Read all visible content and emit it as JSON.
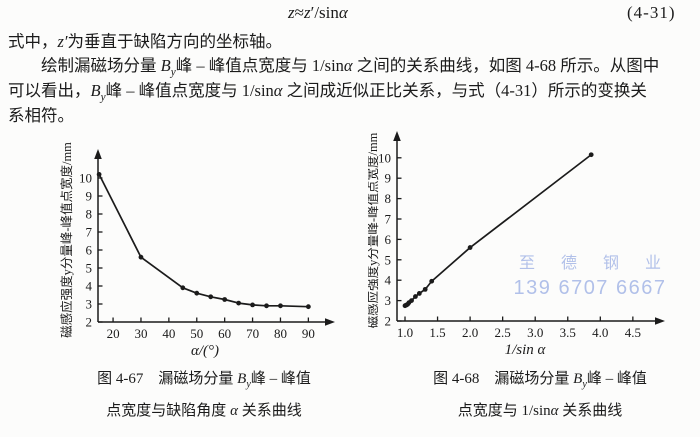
{
  "page": {
    "background": "#fcfcfb",
    "ink_color": "#1b1b1b"
  },
  "equation": {
    "formula_segments": [
      {
        "t": "z",
        "i": true
      },
      {
        "t": "≈"
      },
      {
        "t": "z",
        "i": true
      },
      {
        "t": "′"
      },
      {
        "t": "/sin"
      },
      {
        "t": "α",
        "i": true
      }
    ],
    "number": "(4-31)"
  },
  "paragraph": {
    "lines": [
      {
        "segments": [
          {
            "t": "式中，"
          },
          {
            "t": "z′",
            "i": true
          },
          {
            "t": "为垂直于缺陷方向的坐标轴。"
          }
        ]
      },
      {
        "segments": [
          {
            "t": "绘制漏磁场分量 "
          },
          {
            "t": "B",
            "i": true
          },
          {
            "t": "y",
            "i": true,
            "sub": true
          },
          {
            "t": "峰 – 峰值点宽度与 1/sin"
          },
          {
            "t": "α",
            "i": true
          },
          {
            "t": " 之间的关系曲线，如图 4-68 所示。从图中"
          }
        ]
      },
      {
        "segments": [
          {
            "t": "可以看出，"
          },
          {
            "t": "B",
            "i": true
          },
          {
            "t": "y",
            "i": true,
            "sub": true
          },
          {
            "t": "峰 – 峰值点宽度与 1/sin"
          },
          {
            "t": "α",
            "i": true
          },
          {
            "t": " 之间成近似正比关系，与式（4-31）所示的变换关"
          }
        ]
      },
      {
        "segments": [
          {
            "t": "系相符。"
          }
        ]
      }
    ]
  },
  "figures": [
    {
      "number": "图 4-67",
      "caption_line1_segments": [
        {
          "t": "图 4-67　漏磁场分量 "
        },
        {
          "t": "B",
          "i": true
        },
        {
          "t": "y",
          "i": true,
          "sub": true
        },
        {
          "t": "峰 – 峰值"
        }
      ],
      "caption_line2_segments": [
        {
          "t": "点宽度与缺陷角度 "
        },
        {
          "t": "α",
          "i": true
        },
        {
          "t": " 关系曲线"
        }
      ]
    },
    {
      "number": "图 4-68",
      "caption_line1_segments": [
        {
          "t": "图 4-68　漏磁场分量 "
        },
        {
          "t": "B",
          "i": true
        },
        {
          "t": "y",
          "i": true,
          "sub": true
        },
        {
          "t": "峰 – 峰值"
        }
      ],
      "caption_line2_segments": [
        {
          "t": "点宽度与 1/sin"
        },
        {
          "t": "α",
          "i": true
        },
        {
          "t": " 关系曲线"
        }
      ]
    }
  ],
  "watermark": {
    "line1": "至 德 钢 业",
    "line2": "139 6707 6667",
    "color": "#a4b6e6"
  },
  "chart_data": [
    {
      "figure": "图4-67",
      "type": "line",
      "title": "漏磁场分量By峰-峰值点宽度与缺陷角度α关系曲线",
      "x": [
        15,
        30,
        45,
        50,
        55,
        60,
        65,
        70,
        75,
        80,
        90
      ],
      "y": [
        10.2,
        5.6,
        3.9,
        3.6,
        3.4,
        3.25,
        3.05,
        2.95,
        2.9,
        2.9,
        2.85
      ],
      "xlabel": "α/(°)",
      "ylabel": "磁感应强度y分量峰-峰值点宽度/mm",
      "x_ticks": [
        20,
        30,
        40,
        50,
        60,
        70,
        80,
        90
      ],
      "x_tick_labels": [
        "20",
        "30",
        "40",
        "50",
        "60",
        "70",
        "80",
        "90"
      ],
      "y_ticks": [
        2,
        3,
        4,
        5,
        6,
        7,
        8,
        9,
        10
      ],
      "y_tick_labels": [
        "2",
        "3",
        "4",
        "5",
        "6",
        "7",
        "8",
        "9",
        "10"
      ],
      "xlim": [
        14.6,
        97
      ],
      "ylim": [
        2,
        11
      ],
      "grid": false,
      "marker": "dot",
      "color": "#1b1b1b"
    },
    {
      "figure": "图4-68",
      "type": "line",
      "title": "漏磁场分量By峰-峰值点宽度与1/sinα关系曲线",
      "x": [
        1.0,
        1.02,
        1.04,
        1.06,
        1.1,
        1.16,
        1.22,
        1.31,
        1.41,
        2.0,
        3.86
      ],
      "y": [
        2.75,
        2.78,
        2.82,
        2.9,
        3.0,
        3.2,
        3.35,
        3.55,
        3.95,
        5.6,
        10.15
      ],
      "xlabel": "1/sin α",
      "ylabel": "磁感应强度y分量峰-峰值点宽度/mm",
      "x_ticks": [
        1.0,
        1.5,
        2.0,
        2.5,
        3.0,
        3.5,
        4.0,
        4.5
      ],
      "x_tick_labels": [
        "1.0",
        "1.5",
        "2.0",
        "2.5",
        "3.0",
        "3.5",
        "4.0",
        "4.5"
      ],
      "y_ticks": [
        2,
        3,
        4,
        5,
        6,
        7,
        8,
        9,
        10
      ],
      "y_tick_labels": [
        "2",
        "3",
        "4",
        "5",
        "6",
        "7",
        "8",
        "9",
        "10"
      ],
      "xlim": [
        0.877,
        4.8
      ],
      "ylim": [
        2,
        11
      ],
      "grid": false,
      "marker": "dot",
      "color": "#1b1b1b"
    }
  ]
}
